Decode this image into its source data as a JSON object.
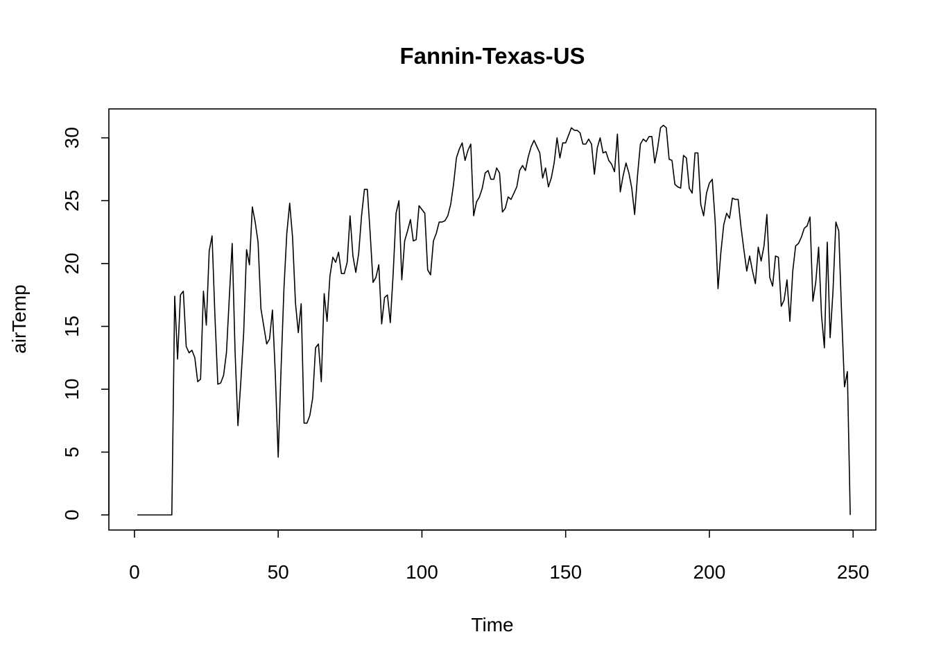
{
  "chart_data": {
    "type": "line",
    "title": "Fannin-Texas-US",
    "xlabel": "Time",
    "ylabel": "airTemp",
    "xlim": [
      -8.9,
      257.9
    ],
    "ylim": [
      -1.2,
      32.3
    ],
    "xticks": [
      0,
      50,
      100,
      150,
      200,
      250
    ],
    "yticks": [
      0,
      5,
      10,
      15,
      20,
      25,
      30
    ],
    "grid": false,
    "series": [
      {
        "points": [
          [
            1,
            0
          ],
          [
            2,
            0
          ],
          [
            3,
            0
          ],
          [
            4,
            0
          ],
          [
            5,
            0
          ],
          [
            6,
            0
          ],
          [
            7,
            0
          ],
          [
            8,
            0
          ],
          [
            9,
            0
          ],
          [
            10,
            0
          ],
          [
            11,
            0
          ],
          [
            12,
            0
          ],
          [
            13,
            0
          ],
          [
            14,
            17.4
          ],
          [
            15,
            12.4
          ],
          [
            16,
            17.5
          ],
          [
            17,
            17.8
          ],
          [
            18,
            13.4
          ],
          [
            19,
            12.9
          ],
          [
            20,
            13.1
          ],
          [
            21,
            12.5
          ],
          [
            22,
            10.6
          ],
          [
            23,
            10.8
          ],
          [
            24,
            17.8
          ],
          [
            25,
            15.1
          ],
          [
            26,
            21.0
          ],
          [
            27,
            22.2
          ],
          [
            28,
            15.8
          ],
          [
            29,
            10.4
          ],
          [
            30,
            10.5
          ],
          [
            31,
            11.1
          ],
          [
            32,
            12.9
          ],
          [
            33,
            17.3
          ],
          [
            34,
            21.6
          ],
          [
            35,
            13.0
          ],
          [
            36,
            7.1
          ],
          [
            37,
            10.6
          ],
          [
            38,
            14.5
          ],
          [
            39,
            21.1
          ],
          [
            40,
            19.9
          ],
          [
            41,
            24.5
          ],
          [
            42,
            23.3
          ],
          [
            43,
            21.7
          ],
          [
            44,
            16.4
          ],
          [
            45,
            15.0
          ],
          [
            46,
            13.6
          ],
          [
            47,
            14.0
          ],
          [
            48,
            16.3
          ],
          [
            49,
            11.2
          ],
          [
            50,
            4.6
          ],
          [
            51,
            11.6
          ],
          [
            52,
            18.0
          ],
          [
            53,
            22.4
          ],
          [
            54,
            24.8
          ],
          [
            55,
            22.1
          ],
          [
            56,
            16.9
          ],
          [
            57,
            14.5
          ],
          [
            58,
            16.8
          ],
          [
            59,
            7.3
          ],
          [
            60,
            7.3
          ],
          [
            61,
            7.9
          ],
          [
            62,
            9.3
          ],
          [
            63,
            13.3
          ],
          [
            64,
            13.6
          ],
          [
            65,
            10.6
          ],
          [
            66,
            17.6
          ],
          [
            67,
            15.4
          ],
          [
            68,
            19.0
          ],
          [
            69,
            20.5
          ],
          [
            70,
            20.1
          ],
          [
            71,
            20.9
          ],
          [
            72,
            19.2
          ],
          [
            73,
            19.2
          ],
          [
            74,
            20.1
          ],
          [
            75,
            23.8
          ],
          [
            76,
            20.6
          ],
          [
            77,
            19.3
          ],
          [
            78,
            20.8
          ],
          [
            79,
            23.8
          ],
          [
            80,
            25.9
          ],
          [
            81,
            25.9
          ],
          [
            82,
            22.4
          ],
          [
            83,
            18.5
          ],
          [
            84,
            18.9
          ],
          [
            85,
            19.9
          ],
          [
            86,
            15.2
          ],
          [
            87,
            17.3
          ],
          [
            88,
            17.5
          ],
          [
            89,
            15.3
          ],
          [
            90,
            19.2
          ],
          [
            91,
            24.0
          ],
          [
            92,
            25.0
          ],
          [
            93,
            18.7
          ],
          [
            94,
            21.8
          ],
          [
            95,
            22.6
          ],
          [
            96,
            23.5
          ],
          [
            97,
            21.8
          ],
          [
            98,
            21.9
          ],
          [
            99,
            24.6
          ],
          [
            100,
            24.3
          ],
          [
            101,
            24.0
          ],
          [
            102,
            19.5
          ],
          [
            103,
            19.1
          ],
          [
            104,
            21.8
          ],
          [
            105,
            22.4
          ],
          [
            106,
            23.3
          ],
          [
            107,
            23.3
          ],
          [
            108,
            23.4
          ],
          [
            109,
            23.8
          ],
          [
            110,
            24.7
          ],
          [
            111,
            26.3
          ],
          [
            112,
            28.4
          ],
          [
            113,
            29.1
          ],
          [
            114,
            29.6
          ],
          [
            115,
            28.2
          ],
          [
            116,
            29.0
          ],
          [
            117,
            29.5
          ],
          [
            118,
            23.8
          ],
          [
            119,
            24.9
          ],
          [
            120,
            25.3
          ],
          [
            121,
            26.0
          ],
          [
            122,
            27.2
          ],
          [
            123,
            27.4
          ],
          [
            124,
            26.7
          ],
          [
            125,
            26.7
          ],
          [
            126,
            27.6
          ],
          [
            127,
            27.2
          ],
          [
            128,
            24.1
          ],
          [
            129,
            24.4
          ],
          [
            130,
            25.3
          ],
          [
            131,
            25.1
          ],
          [
            132,
            25.6
          ],
          [
            133,
            26.1
          ],
          [
            134,
            27.4
          ],
          [
            135,
            27.8
          ],
          [
            136,
            27.4
          ],
          [
            137,
            28.5
          ],
          [
            138,
            29.3
          ],
          [
            139,
            29.8
          ],
          [
            140,
            29.3
          ],
          [
            141,
            28.8
          ],
          [
            142,
            26.8
          ],
          [
            143,
            27.6
          ],
          [
            144,
            26.1
          ],
          [
            145,
            26.8
          ],
          [
            146,
            28.0
          ],
          [
            147,
            30.0
          ],
          [
            148,
            28.4
          ],
          [
            149,
            29.6
          ],
          [
            150,
            29.6
          ],
          [
            151,
            30.2
          ],
          [
            152,
            30.8
          ],
          [
            153,
            30.6
          ],
          [
            154,
            30.6
          ],
          [
            155,
            30.4
          ],
          [
            156,
            29.5
          ],
          [
            157,
            29.5
          ],
          [
            158,
            29.9
          ],
          [
            159,
            29.5
          ],
          [
            160,
            27.1
          ],
          [
            161,
            29.2
          ],
          [
            162,
            30.0
          ],
          [
            163,
            28.8
          ],
          [
            164,
            28.9
          ],
          [
            165,
            28.2
          ],
          [
            166,
            27.9
          ],
          [
            167,
            27.3
          ],
          [
            168,
            30.3
          ],
          [
            169,
            25.7
          ],
          [
            170,
            27.0
          ],
          [
            171,
            28.0
          ],
          [
            172,
            27.2
          ],
          [
            173,
            26.0
          ],
          [
            174,
            23.9
          ],
          [
            175,
            27.0
          ],
          [
            176,
            29.5
          ],
          [
            177,
            29.9
          ],
          [
            178,
            29.7
          ],
          [
            179,
            30.1
          ],
          [
            180,
            30.1
          ],
          [
            181,
            28.0
          ],
          [
            182,
            29.2
          ],
          [
            183,
            30.8
          ],
          [
            184,
            31.0
          ],
          [
            185,
            30.8
          ],
          [
            186,
            28.3
          ],
          [
            187,
            28.2
          ],
          [
            188,
            26.3
          ],
          [
            189,
            26.1
          ],
          [
            190,
            26.0
          ],
          [
            191,
            28.6
          ],
          [
            192,
            28.4
          ],
          [
            193,
            26.0
          ],
          [
            194,
            25.6
          ],
          [
            195,
            28.8
          ],
          [
            196,
            28.8
          ],
          [
            197,
            24.7
          ],
          [
            198,
            23.8
          ],
          [
            199,
            25.6
          ],
          [
            200,
            26.4
          ],
          [
            201,
            26.7
          ],
          [
            202,
            23.4
          ],
          [
            203,
            18.0
          ],
          [
            204,
            20.9
          ],
          [
            205,
            23.1
          ],
          [
            206,
            24.0
          ],
          [
            207,
            23.6
          ],
          [
            208,
            25.2
          ],
          [
            209,
            25.1
          ],
          [
            210,
            25.1
          ],
          [
            211,
            22.9
          ],
          [
            212,
            21.1
          ],
          [
            213,
            19.4
          ],
          [
            214,
            20.6
          ],
          [
            215,
            19.4
          ],
          [
            216,
            18.4
          ],
          [
            217,
            21.3
          ],
          [
            218,
            20.2
          ],
          [
            219,
            21.4
          ],
          [
            220,
            23.9
          ],
          [
            221,
            18.9
          ],
          [
            222,
            18.2
          ],
          [
            223,
            20.6
          ],
          [
            224,
            20.5
          ],
          [
            225,
            16.6
          ],
          [
            226,
            17.1
          ],
          [
            227,
            18.7
          ],
          [
            228,
            15.4
          ],
          [
            229,
            19.4
          ],
          [
            230,
            21.4
          ],
          [
            231,
            21.6
          ],
          [
            232,
            22.1
          ],
          [
            233,
            22.8
          ],
          [
            234,
            23.0
          ],
          [
            235,
            23.7
          ],
          [
            236,
            17.0
          ],
          [
            237,
            18.5
          ],
          [
            238,
            21.3
          ],
          [
            239,
            15.9
          ],
          [
            240,
            13.3
          ],
          [
            241,
            21.7
          ],
          [
            242,
            14.1
          ],
          [
            243,
            17.8
          ],
          [
            244,
            23.3
          ],
          [
            245,
            22.6
          ],
          [
            246,
            16.0
          ],
          [
            247,
            10.2
          ],
          [
            248,
            11.4
          ],
          [
            249,
            0
          ]
        ]
      }
    ]
  }
}
